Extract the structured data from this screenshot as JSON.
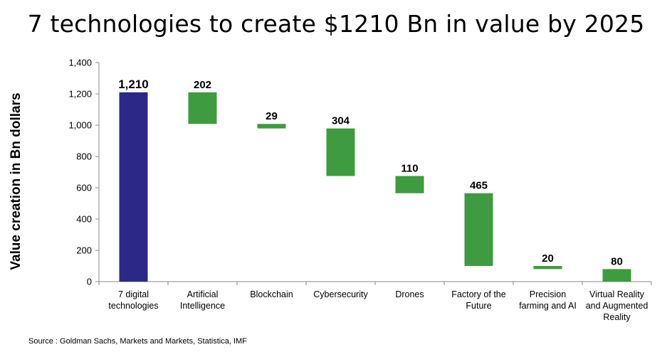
{
  "title": "7 technologies to create $1210 Bn in value by 2025",
  "source": "Source : Goldman Sachs, Markets and Markets, Statistica, IMF",
  "chart_data": {
    "type": "bar",
    "subtype": "waterfall",
    "title": "7 technologies to create $1210 Bn in value by 2025",
    "ylabel": "Value creation in Bn dollars",
    "xlabel": "",
    "ylim": [
      0,
      1400
    ],
    "yticks": [
      "0",
      "200",
      "400",
      "600",
      "800",
      "1,000",
      "1,200",
      "1,400"
    ],
    "ytick_values": [
      0,
      200,
      400,
      600,
      800,
      1000,
      1200,
      1400
    ],
    "grid": false,
    "legend": "none",
    "categories": [
      [
        "7 digital",
        "technologies"
      ],
      [
        "Artificial",
        "Intelligence"
      ],
      [
        "Blockchain"
      ],
      [
        "Cybersecurity"
      ],
      [
        "Drones"
      ],
      [
        "Factory of the",
        "Future"
      ],
      [
        "Precision",
        "farming and AI"
      ],
      [
        "Virtual Reality",
        "and Augmented",
        "Reality"
      ]
    ],
    "values": [
      1210,
      202,
      29,
      304,
      110,
      465,
      20,
      80
    ],
    "value_labels": [
      "1,210",
      "202",
      "29",
      "304",
      "110",
      "465",
      "20",
      "80"
    ],
    "bar_ranges": [
      [
        0,
        1210
      ],
      [
        1008,
        1210
      ],
      [
        979,
        1008
      ],
      [
        675,
        979
      ],
      [
        565,
        675
      ],
      [
        100,
        565
      ],
      [
        80,
        100
      ],
      [
        0,
        80
      ]
    ],
    "colors": {
      "total": "#2b2887",
      "increment": "#3f9b3f",
      "axis": "#8a8a8a"
    }
  }
}
